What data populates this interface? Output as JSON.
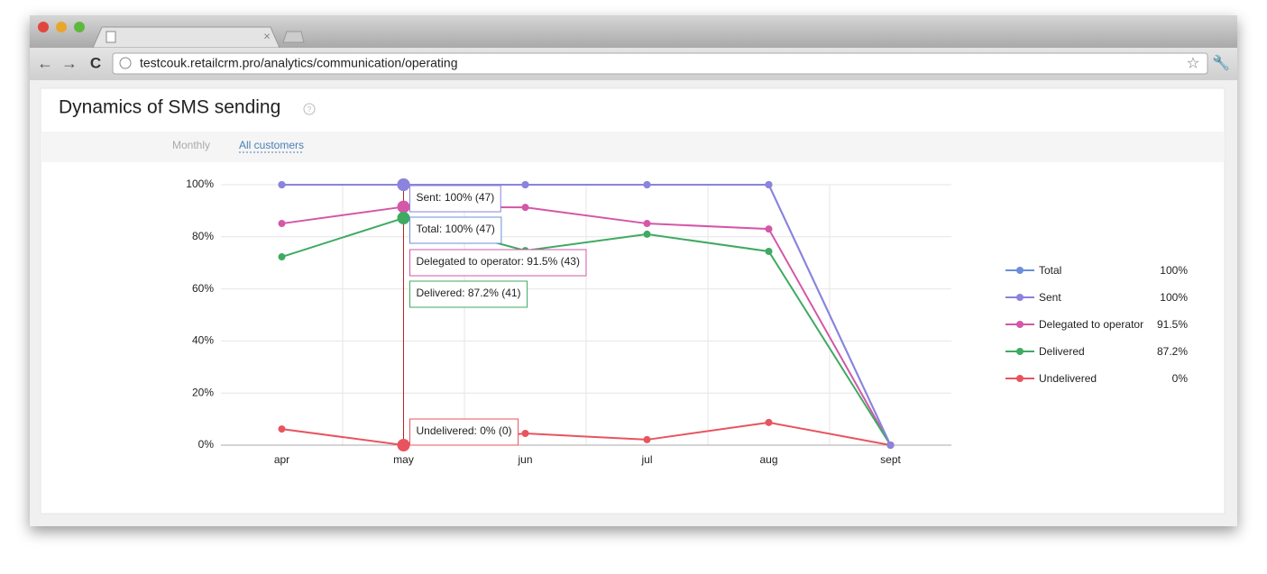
{
  "browser": {
    "url": "testcouk.retailcrm.pro/analytics/communication/operating"
  },
  "header": {
    "title": "Dynamics of SMS sending",
    "filters": [
      "Monthly",
      "All customers"
    ]
  },
  "chart_data": {
    "type": "line",
    "categories": [
      "apr",
      "may",
      "jun",
      "jul",
      "aug",
      "sept"
    ],
    "ylim": [
      0,
      100
    ],
    "yticks": [
      {
        "value": 0,
        "label": "0%"
      },
      {
        "value": 20,
        "label": "20%"
      },
      {
        "value": 40,
        "label": "40%"
      },
      {
        "value": 60,
        "label": "60%"
      },
      {
        "value": 80,
        "label": "80%"
      },
      {
        "value": 100,
        "label": "100%"
      }
    ],
    "grid": true,
    "series": [
      {
        "name": "Total",
        "color": "#6b8fd9",
        "values": [
          100,
          100,
          100,
          100,
          100,
          0
        ],
        "legend_value": "100%"
      },
      {
        "name": "Sent",
        "color": "#8b83dd",
        "values": [
          100,
          100,
          100,
          100,
          100,
          0
        ],
        "legend_value": "100%"
      },
      {
        "name": "Delegated to operator",
        "color": "#d457a8",
        "values": [
          85.1,
          91.5,
          91.3,
          85.1,
          83.0,
          0
        ],
        "legend_value": "91.5%"
      },
      {
        "name": "Delivered",
        "color": "#3faa62",
        "values": [
          72.3,
          87.2,
          74.7,
          81.0,
          74.4,
          0
        ],
        "legend_value": "87.2%"
      },
      {
        "name": "Undelivered",
        "color": "#e8545e",
        "values": [
          6.2,
          0,
          4.5,
          2.1,
          8.7,
          0
        ],
        "legend_value": "0%"
      }
    ],
    "tooltips": [
      {
        "text": "Sent: 100% (47)",
        "color": "#8b83dd"
      },
      {
        "text": "Total: 100% (47)",
        "color": "#6b8fd9"
      },
      {
        "text": "Delegated to operator: 91.5% (43)",
        "color": "#d457a8"
      },
      {
        "text": "Delivered: 87.2% (41)",
        "color": "#3faa62"
      },
      {
        "text": "Undelivered: 0% (0)",
        "color": "#e8545e"
      }
    ]
  }
}
